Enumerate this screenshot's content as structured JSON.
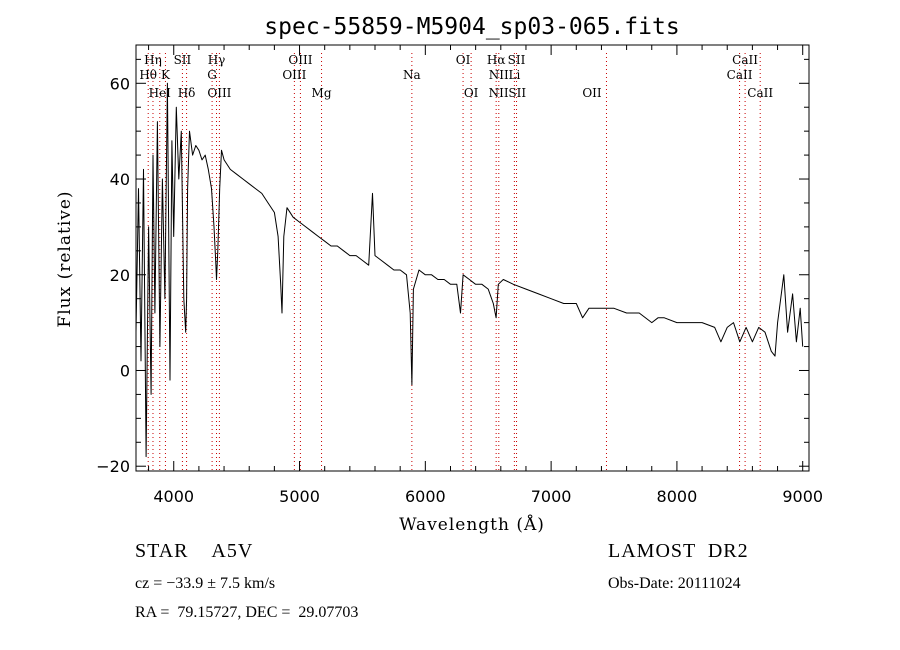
{
  "chart_data": {
    "type": "line",
    "title": "spec-55859-M5904_sp03-065.fits",
    "xlabel": "Wavelength (Å)",
    "ylabel": "Flux (relative)",
    "xlim": [
      3700,
      9050
    ],
    "ylim": [
      -21,
      68
    ],
    "xticks": [
      4000,
      5000,
      6000,
      7000,
      8000,
      9000
    ],
    "yticks": [
      -20,
      0,
      20,
      40,
      60
    ],
    "grid": false,
    "series": [
      {
        "x": [
          3700,
          3720,
          3740,
          3760,
          3780,
          3800,
          3820,
          3835,
          3850,
          3870,
          3890,
          3910,
          3930,
          3950,
          3970,
          3985,
          4000,
          4020,
          4040,
          4060,
          4080,
          4095,
          4102,
          4110,
          4125,
          4150,
          4175,
          4200,
          4225,
          4250,
          4275,
          4300,
          4320,
          4335,
          4340,
          4350,
          4365,
          4380,
          4400,
          4450,
          4500,
          4550,
          4600,
          4650,
          4700,
          4750,
          4800,
          4830,
          4850,
          4861,
          4875,
          4900,
          4950,
          5000,
          5050,
          5100,
          5150,
          5200,
          5250,
          5300,
          5350,
          5400,
          5450,
          5500,
          5550,
          5580,
          5600,
          5650,
          5700,
          5750,
          5800,
          5850,
          5880,
          5893,
          5905,
          5950,
          6000,
          6050,
          6100,
          6150,
          6200,
          6250,
          6280,
          6300,
          6350,
          6400,
          6450,
          6500,
          6540,
          6563,
          6580,
          6620,
          6700,
          6800,
          6900,
          7000,
          7100,
          7200,
          7250,
          7300,
          7400,
          7500,
          7600,
          7700,
          7800,
          7850,
          7900,
          8000,
          8100,
          8200,
          8300,
          8350,
          8400,
          8450,
          8500,
          8550,
          8600,
          8650,
          8700,
          8750,
          8780,
          8800,
          8850,
          8880,
          8920,
          8950,
          8980,
          9000
        ],
        "y": [
          8,
          38,
          2,
          42,
          -18,
          30,
          -5,
          45,
          12,
          52,
          5,
          40,
          15,
          60,
          -2,
          48,
          28,
          55,
          40,
          50,
          15,
          8,
          15,
          38,
          50,
          45,
          47,
          46,
          44,
          45,
          42,
          38,
          30,
          22,
          19,
          25,
          38,
          46,
          44,
          42,
          41,
          40,
          39,
          38,
          37,
          35,
          33,
          28,
          18,
          12,
          28,
          34,
          32,
          31,
          30,
          29,
          28,
          27,
          26,
          26,
          25,
          24,
          24,
          23,
          22,
          37,
          24,
          23,
          22,
          21,
          21,
          20,
          12,
          -3,
          17,
          21,
          20,
          20,
          19,
          19,
          18,
          18,
          12,
          20,
          19,
          18,
          18,
          17,
          14,
          11,
          18,
          19,
          18,
          17,
          16,
          15,
          14,
          14,
          11,
          13,
          13,
          13,
          12,
          12,
          10,
          11,
          11,
          10,
          10,
          10,
          9,
          6,
          9,
          10,
          6,
          9,
          6,
          9,
          8,
          4,
          3,
          10,
          20,
          8,
          16,
          6,
          13,
          5
        ]
      }
    ],
    "line_labels": [
      {
        "text": "Hη",
        "x": 3835,
        "row": 1
      },
      {
        "text": "Hθ",
        "x": 3797,
        "row": 2
      },
      {
        "text": "K",
        "x": 3934,
        "row": 2
      },
      {
        "text": "HeI",
        "x": 3889,
        "row": 3
      },
      {
        "text": "SII",
        "x": 4069,
        "row": 1
      },
      {
        "text": "Hδ",
        "x": 4102,
        "row": 3
      },
      {
        "text": "Hγ",
        "x": 4340,
        "row": 1
      },
      {
        "text": "G",
        "x": 4305,
        "row": 2
      },
      {
        "text": "OIII",
        "x": 4363,
        "row": 3
      },
      {
        "text": "OIII",
        "x": 5007,
        "row": 1
      },
      {
        "text": "OIII",
        "x": 4959,
        "row": 2
      },
      {
        "text": "Mg",
        "x": 5175,
        "row": 3
      },
      {
        "text": "Na",
        "x": 5893,
        "row": 2
      },
      {
        "text": "OI",
        "x": 6300,
        "row": 1
      },
      {
        "text": "OI",
        "x": 6364,
        "row": 3
      },
      {
        "text": "Hα",
        "x": 6563,
        "row": 1
      },
      {
        "text": "SII",
        "x": 6725,
        "row": 1
      },
      {
        "text": "NII",
        "x": 6584,
        "row": 2
      },
      {
        "text": "Li",
        "x": 6708,
        "row": 2
      },
      {
        "text": "NII",
        "x": 6583,
        "row": 3
      },
      {
        "text": "SII",
        "x": 6731,
        "row": 3
      },
      {
        "text": "OII",
        "x": 7325,
        "row": 3
      },
      {
        "text": "CaII",
        "x": 8542,
        "row": 1
      },
      {
        "text": "CaII",
        "x": 8498,
        "row": 2
      },
      {
        "text": "CaII",
        "x": 8662,
        "row": 3
      }
    ],
    "marker_lines": [
      3797,
      3835,
      3889,
      3934,
      4069,
      4102,
      4305,
      4340,
      4363,
      4959,
      5007,
      5175,
      5893,
      6300,
      6364,
      6563,
      6584,
      6708,
      6725,
      7440,
      8498,
      8542,
      8662
    ],
    "marker_color": "#c80000"
  },
  "footer": {
    "class": "STAR    A5V",
    "survey": "LAMOST  DR2",
    "cz": "cz = −33.9 ± 7.5 km/s",
    "obs_date": "Obs-Date: 20111024",
    "radec": "RA =  79.15727, DEC =  29.07703"
  }
}
